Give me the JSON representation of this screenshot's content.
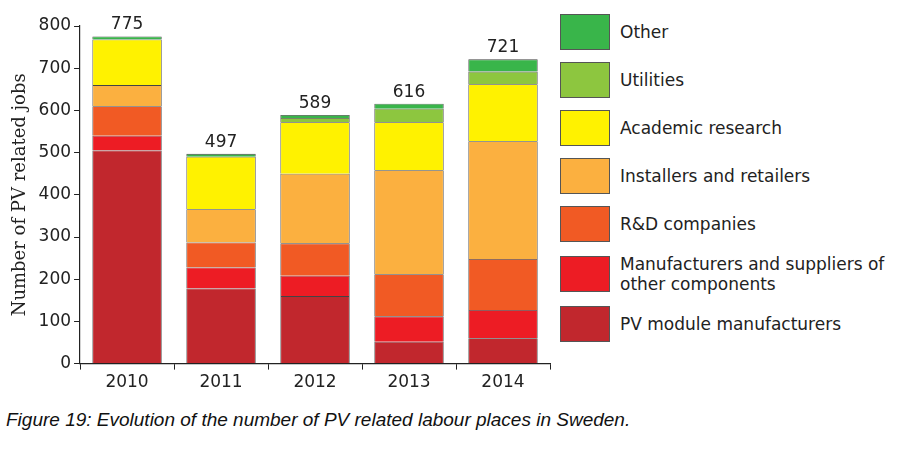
{
  "chart_data": {
    "type": "bar",
    "stacked": true,
    "caption": "Figure 19: Evolution of the number of PV related labour places in Sweden.",
    "y_label": "Number of PV related jobs",
    "categories": [
      "2010",
      "2011",
      "2012",
      "2013",
      "2014"
    ],
    "series": [
      {
        "name": "PV module manufacturers",
        "color": "#c1272d",
        "values": [
          505,
          178,
          160,
          52,
          60
        ]
      },
      {
        "name": "Manufacturers and suppliers of other components",
        "color": "#ed1c24",
        "values": [
          35,
          50,
          48,
          60,
          67
        ]
      },
      {
        "name": "R&D companies",
        "color": "#f15a24",
        "values": [
          70,
          59,
          77,
          100,
          121
        ]
      },
      {
        "name": "Installers and retailers",
        "color": "#fbb040",
        "values": [
          50,
          79,
          165,
          246,
          279
        ]
      },
      {
        "name": "Academic research",
        "color": "#fff200",
        "values": [
          108,
          124,
          122,
          114,
          135
        ]
      },
      {
        "name": "Utilities",
        "color": "#8dc63f",
        "values": [
          0,
          0,
          10,
          32,
          30
        ]
      },
      {
        "name": "Other",
        "color": "#39b54a",
        "values": [
          7,
          7,
          7,
          12,
          29
        ]
      }
    ],
    "totals": [
      775,
      497,
      589,
      616,
      721
    ],
    "ylim": [
      0,
      800
    ],
    "yticks": [
      0,
      100,
      200,
      300,
      400,
      500,
      600,
      700,
      800
    ],
    "grid": false,
    "legend": "right"
  }
}
